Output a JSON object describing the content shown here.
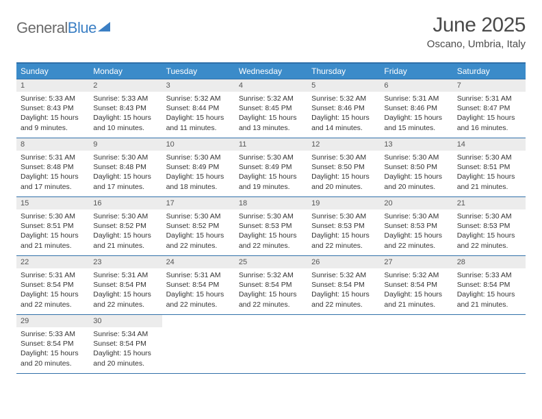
{
  "logo": {
    "textGray": "General",
    "textBlue": "Blue"
  },
  "title": "June 2025",
  "location": "Oscano, Umbria, Italy",
  "colors": {
    "headerBg": "#3b8bc9",
    "border": "#2f6fa8",
    "dayNumBg": "#ececec",
    "logoBlue": "#3b7fc4",
    "textGray": "#6b6b6b"
  },
  "weekdays": [
    "Sunday",
    "Monday",
    "Tuesday",
    "Wednesday",
    "Thursday",
    "Friday",
    "Saturday"
  ],
  "weeks": [
    [
      {
        "n": "1",
        "sunrise": "5:33 AM",
        "sunset": "8:43 PM",
        "day": "15 hours and 9 minutes."
      },
      {
        "n": "2",
        "sunrise": "5:33 AM",
        "sunset": "8:43 PM",
        "day": "15 hours and 10 minutes."
      },
      {
        "n": "3",
        "sunrise": "5:32 AM",
        "sunset": "8:44 PM",
        "day": "15 hours and 11 minutes."
      },
      {
        "n": "4",
        "sunrise": "5:32 AM",
        "sunset": "8:45 PM",
        "day": "15 hours and 13 minutes."
      },
      {
        "n": "5",
        "sunrise": "5:32 AM",
        "sunset": "8:46 PM",
        "day": "15 hours and 14 minutes."
      },
      {
        "n": "6",
        "sunrise": "5:31 AM",
        "sunset": "8:46 PM",
        "day": "15 hours and 15 minutes."
      },
      {
        "n": "7",
        "sunrise": "5:31 AM",
        "sunset": "8:47 PM",
        "day": "15 hours and 16 minutes."
      }
    ],
    [
      {
        "n": "8",
        "sunrise": "5:31 AM",
        "sunset": "8:48 PM",
        "day": "15 hours and 17 minutes."
      },
      {
        "n": "9",
        "sunrise": "5:30 AM",
        "sunset": "8:48 PM",
        "day": "15 hours and 17 minutes."
      },
      {
        "n": "10",
        "sunrise": "5:30 AM",
        "sunset": "8:49 PM",
        "day": "15 hours and 18 minutes."
      },
      {
        "n": "11",
        "sunrise": "5:30 AM",
        "sunset": "8:49 PM",
        "day": "15 hours and 19 minutes."
      },
      {
        "n": "12",
        "sunrise": "5:30 AM",
        "sunset": "8:50 PM",
        "day": "15 hours and 20 minutes."
      },
      {
        "n": "13",
        "sunrise": "5:30 AM",
        "sunset": "8:50 PM",
        "day": "15 hours and 20 minutes."
      },
      {
        "n": "14",
        "sunrise": "5:30 AM",
        "sunset": "8:51 PM",
        "day": "15 hours and 21 minutes."
      }
    ],
    [
      {
        "n": "15",
        "sunrise": "5:30 AM",
        "sunset": "8:51 PM",
        "day": "15 hours and 21 minutes."
      },
      {
        "n": "16",
        "sunrise": "5:30 AM",
        "sunset": "8:52 PM",
        "day": "15 hours and 21 minutes."
      },
      {
        "n": "17",
        "sunrise": "5:30 AM",
        "sunset": "8:52 PM",
        "day": "15 hours and 22 minutes."
      },
      {
        "n": "18",
        "sunrise": "5:30 AM",
        "sunset": "8:53 PM",
        "day": "15 hours and 22 minutes."
      },
      {
        "n": "19",
        "sunrise": "5:30 AM",
        "sunset": "8:53 PM",
        "day": "15 hours and 22 minutes."
      },
      {
        "n": "20",
        "sunrise": "5:30 AM",
        "sunset": "8:53 PM",
        "day": "15 hours and 22 minutes."
      },
      {
        "n": "21",
        "sunrise": "5:30 AM",
        "sunset": "8:53 PM",
        "day": "15 hours and 22 minutes."
      }
    ],
    [
      {
        "n": "22",
        "sunrise": "5:31 AM",
        "sunset": "8:54 PM",
        "day": "15 hours and 22 minutes."
      },
      {
        "n": "23",
        "sunrise": "5:31 AM",
        "sunset": "8:54 PM",
        "day": "15 hours and 22 minutes."
      },
      {
        "n": "24",
        "sunrise": "5:31 AM",
        "sunset": "8:54 PM",
        "day": "15 hours and 22 minutes."
      },
      {
        "n": "25",
        "sunrise": "5:32 AM",
        "sunset": "8:54 PM",
        "day": "15 hours and 22 minutes."
      },
      {
        "n": "26",
        "sunrise": "5:32 AM",
        "sunset": "8:54 PM",
        "day": "15 hours and 22 minutes."
      },
      {
        "n": "27",
        "sunrise": "5:32 AM",
        "sunset": "8:54 PM",
        "day": "15 hours and 21 minutes."
      },
      {
        "n": "28",
        "sunrise": "5:33 AM",
        "sunset": "8:54 PM",
        "day": "15 hours and 21 minutes."
      }
    ],
    [
      {
        "n": "29",
        "sunrise": "5:33 AM",
        "sunset": "8:54 PM",
        "day": "15 hours and 20 minutes."
      },
      {
        "n": "30",
        "sunrise": "5:34 AM",
        "sunset": "8:54 PM",
        "day": "15 hours and 20 minutes."
      },
      null,
      null,
      null,
      null,
      null
    ]
  ],
  "labels": {
    "sunrise": "Sunrise: ",
    "sunset": "Sunset: ",
    "daylight": "Daylight: "
  }
}
